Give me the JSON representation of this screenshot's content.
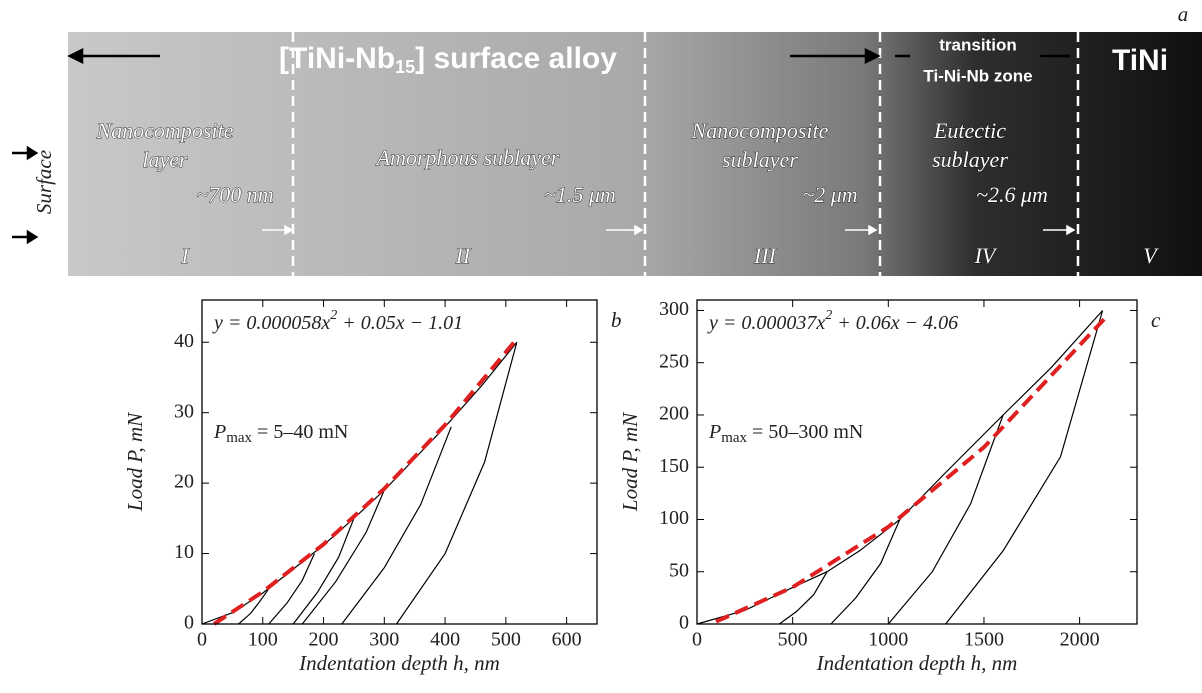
{
  "panel_a": {
    "label": "a",
    "title_parts": [
      "[TiNi-Nb",
      "15",
      "] surface alloy"
    ],
    "transition": [
      "transition",
      "Ti-Ni-Nb zone"
    ],
    "tini": "TiNi",
    "surface": "Surface",
    "zones": [
      {
        "lines": [
          "Nanocomposite",
          "layer"
        ],
        "size": "~700 nm",
        "numeral": "I"
      },
      {
        "lines": [
          "Amorphous sublayer"
        ],
        "size": "~1.5 μm",
        "numeral": "II"
      },
      {
        "lines": [
          "Nanocomposite",
          "sublayer"
        ],
        "size": "~2 μm",
        "numeral": "III"
      },
      {
        "lines": [
          "Eutectic",
          "sublayer"
        ],
        "size": "~2.6 μm",
        "numeral": "IV"
      },
      {
        "lines": [],
        "numeral": "V"
      }
    ]
  },
  "chart_data": [
    {
      "type": "line",
      "panel": "b",
      "equation": [
        "y = 0.000058x",
        "2",
        " + 0.05x − 1.01"
      ],
      "pmax": [
        "P",
        "max",
        " = 5–40 mN"
      ],
      "xlabel": "Indentation depth h, nm",
      "ylabel": "Load P, mN",
      "xlim": [
        0,
        650
      ],
      "xticks": [
        0,
        100,
        200,
        300,
        400,
        500,
        600
      ],
      "ylim": [
        0,
        46
      ],
      "yticks": [
        0,
        10,
        20,
        30,
        40
      ],
      "series": [
        {
          "color": "#000000",
          "x": [
            0,
            50,
            100,
            150,
            200,
            250,
            300,
            350,
            400,
            460,
            518
          ],
          "values": [
            0,
            1.6,
            4.4,
            7.8,
            11.2,
            15,
            19,
            23.5,
            28,
            33.8,
            40
          ]
        },
        {
          "color": "#000000",
          "x": [
            60,
            80,
            95,
            110
          ],
          "values": [
            0,
            1.5,
            3.2,
            5
          ]
        },
        {
          "color": "#000000",
          "x": [
            110,
            140,
            165,
            185
          ],
          "values": [
            0,
            3,
            6.2,
            10
          ]
        },
        {
          "color": "#000000",
          "x": [
            150,
            190,
            225,
            250
          ],
          "values": [
            0,
            4.5,
            9.5,
            15
          ]
        },
        {
          "color": "#000000",
          "x": [
            165,
            220,
            270,
            305
          ],
          "values": [
            0,
            6,
            13,
            20
          ]
        },
        {
          "color": "#000000",
          "x": [
            230,
            300,
            360,
            410
          ],
          "values": [
            0,
            8,
            17,
            28
          ]
        },
        {
          "color": "#000000",
          "x": [
            320,
            400,
            465,
            518
          ],
          "values": [
            0,
            10,
            23,
            40
          ]
        },
        {
          "color": "#e02020",
          "dash": true,
          "x": [
            20,
            100,
            200,
            300,
            400,
            520
          ],
          "values": [
            0.01,
            4.57,
            11.31,
            19.21,
            28.27,
            40.67
          ]
        }
      ]
    },
    {
      "type": "line",
      "panel": "c",
      "equation": [
        "y = 0.000037x",
        "2",
        " + 0.06x − 4.06"
      ],
      "pmax": [
        "P",
        "max",
        " = 50–300 mN"
      ],
      "xlabel": "Indentation depth h, nm",
      "ylabel": "Load P, mN",
      "xlim": [
        0,
        2300
      ],
      "xticks": [
        0,
        500,
        1000,
        1500,
        2000
      ],
      "ylim": [
        0,
        310
      ],
      "yticks": [
        0,
        50,
        100,
        150,
        200,
        250,
        300
      ],
      "series": [
        {
          "color": "#000000",
          "x": [
            0,
            250,
            500,
            680,
            850,
            1060,
            1300,
            1600,
            1850,
            2120
          ],
          "values": [
            0,
            13,
            35,
            50,
            70,
            100,
            145,
            200,
            245,
            300
          ]
        },
        {
          "color": "#000000",
          "x": [
            430,
            520,
            610,
            680
          ],
          "values": [
            0,
            12,
            28,
            50
          ]
        },
        {
          "color": "#000000",
          "x": [
            700,
            830,
            960,
            1060
          ],
          "values": [
            0,
            25,
            58,
            100
          ]
        },
        {
          "color": "#000000",
          "x": [
            1000,
            1230,
            1430,
            1600
          ],
          "values": [
            0,
            50,
            115,
            200
          ]
        },
        {
          "color": "#000000",
          "x": [
            1300,
            1600,
            1900,
            2120
          ],
          "values": [
            0,
            70,
            160,
            300
          ]
        },
        {
          "color": "#e02020",
          "dash": true,
          "x": [
            100,
            500,
            1000,
            1500,
            2150
          ],
          "values": [
            2.31,
            35.19,
            92.94,
            169.19,
            295.97
          ]
        }
      ]
    }
  ]
}
